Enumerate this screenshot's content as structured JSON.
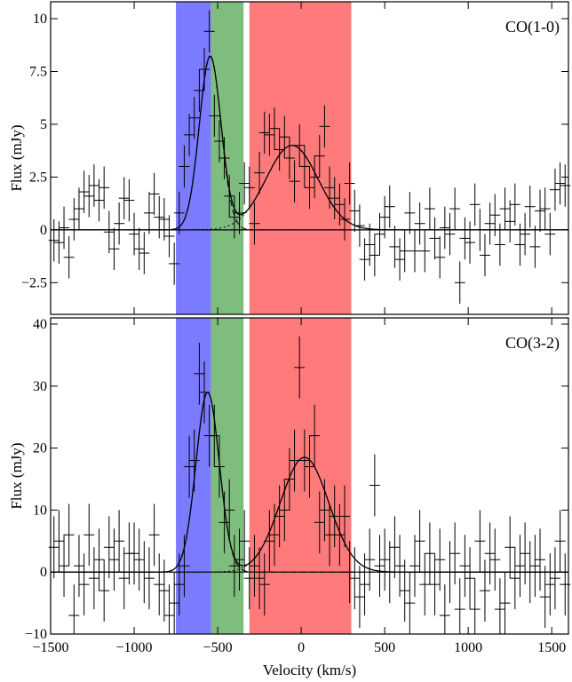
{
  "colors": {
    "blue_band": "#7b7bff",
    "green_band": "#7fbd7f",
    "red_band": "#ff7b7b",
    "ink": "#000000"
  },
  "chart_data": [
    {
      "type": "line",
      "panel_label": "CO(1-0)",
      "ylabel": "Flux (mJy)",
      "xlabel": "",
      "xlim": [
        -1500,
        1600
      ],
      "ylim": [
        -4,
        10.8
      ],
      "xticks": [
        -1500,
        -1000,
        -500,
        0,
        500,
        1000,
        1500
      ],
      "yticks": [
        -2.5,
        0,
        2.5,
        5,
        7.5,
        10
      ],
      "ytick_labels": [
        "−2.5",
        "0",
        "2.5",
        "5",
        "7.5",
        "10"
      ],
      "bands": [
        {
          "color": "blue",
          "x0": -750,
          "x1": -540
        },
        {
          "color": "green",
          "x0": -540,
          "x1": -345
        },
        {
          "color": "red",
          "x0": -310,
          "x1": 300
        }
      ],
      "components": [
        {
          "center": -545,
          "amplitude": 8.2,
          "sigma": 65
        },
        {
          "center": -55,
          "amplitude": 4.0,
          "sigma": 155
        }
      ],
      "points": {
        "x": [
          -1480,
          -1450,
          -1420,
          -1390,
          -1360,
          -1330,
          -1300,
          -1270,
          -1240,
          -1210,
          -1180,
          -1150,
          -1120,
          -1090,
          -1060,
          -1030,
          -1000,
          -970,
          -940,
          -910,
          -880,
          -850,
          -820,
          -790,
          -760,
          -730,
          -700,
          -670,
          -640,
          -610,
          -580,
          -550,
          -520,
          -490,
          -460,
          -430,
          -400,
          -370,
          -340,
          -310,
          -280,
          -250,
          -220,
          -190,
          -160,
          -130,
          -100,
          -70,
          -40,
          -10,
          20,
          50,
          80,
          110,
          140,
          170,
          200,
          230,
          260,
          290,
          320,
          350,
          380,
          410,
          440,
          470,
          500,
          530,
          560,
          590,
          620,
          650,
          680,
          710,
          740,
          770,
          800,
          830,
          860,
          890,
          920,
          950,
          980,
          1010,
          1040,
          1070,
          1100,
          1130,
          1160,
          1190,
          1220,
          1250,
          1280,
          1310,
          1340,
          1370,
          1400,
          1430,
          1460,
          1490,
          1520,
          1550,
          1580
        ],
        "y": [
          -0.5,
          -0.6,
          0.1,
          -1.3,
          0.5,
          1.0,
          1.8,
          1.6,
          2.1,
          1.4,
          2.0,
          -0.1,
          -0.9,
          0.3,
          1.5,
          1.4,
          -0.2,
          -0.9,
          -1.1,
          0.8,
          1.7,
          0.6,
          0.5,
          -0.3,
          -1.6,
          0.8,
          3.0,
          4.5,
          5.3,
          6.6,
          7.6,
          9.4,
          5.4,
          4.2,
          3.4,
          1.6,
          0.6,
          0.8,
          2.2,
          2.0,
          0.3,
          2.7,
          4.6,
          4.5,
          4.8,
          3.8,
          4.4,
          3.4,
          2.3,
          4.0,
          3.0,
          2.0,
          2.5,
          3.5,
          4.9,
          2.0,
          1.5,
          1.2,
          0.5,
          2.2,
          0.9,
          0.2,
          -1.4,
          -0.7,
          -1.2,
          -0.2,
          0.6,
          1.1,
          -0.8,
          -1.4,
          -1.0,
          0.8,
          -1.0,
          0.3,
          -1.0,
          1.0,
          -0.4,
          -1.3,
          0.1,
          -0.2,
          1.0,
          -2.5,
          -0.4,
          -0.6,
          1.2,
          0.0,
          -1.2,
          0.3,
          0.7,
          -0.7,
          1.0,
          0.4,
          1.2,
          -0.7,
          -0.2,
          1.1,
          -0.8,
          0.9,
          1.0,
          -0.2,
          1.9,
          2.2,
          2.1
        ],
        "yerr": [
          1.0,
          1.0,
          1.0,
          1.0,
          1.0,
          1.0,
          1.0,
          1.0,
          1.0,
          1.0,
          1.0,
          1.0,
          1.0,
          1.0,
          1.0,
          1.0,
          1.0,
          1.0,
          1.0,
          1.0,
          1.0,
          1.0,
          1.0,
          1.0,
          1.0,
          1.0,
          1.0,
          1.0,
          1.0,
          1.0,
          1.0,
          1.0,
          1.0,
          1.0,
          1.0,
          1.0,
          1.0,
          1.0,
          1.0,
          1.0,
          1.0,
          1.0,
          1.0,
          1.0,
          1.0,
          1.0,
          1.0,
          1.0,
          1.0,
          1.0,
          1.0,
          1.0,
          1.0,
          1.0,
          1.0,
          1.0,
          1.0,
          1.0,
          1.0,
          1.0,
          1.0,
          1.0,
          1.0,
          1.0,
          1.0,
          1.0,
          1.0,
          1.0,
          1.0,
          1.0,
          1.0,
          1.0,
          1.0,
          1.0,
          1.0,
          1.0,
          1.0,
          1.0,
          1.0,
          1.0,
          1.0,
          1.0,
          1.0,
          1.0,
          1.0,
          1.0,
          1.0,
          1.0,
          1.0,
          1.0,
          1.0,
          1.0,
          1.0,
          1.0,
          1.0,
          1.0,
          1.0,
          1.0,
          1.0,
          1.0,
          1.0,
          1.0,
          1.0
        ]
      }
    },
    {
      "type": "line",
      "panel_label": "CO(3-2)",
      "ylabel": "Flux (mJy)",
      "xlabel": "Velocity (km/s)",
      "xlim": [
        -1500,
        1600
      ],
      "ylim": [
        -10,
        41
      ],
      "xticks": [
        -1500,
        -1000,
        -500,
        0,
        500,
        1000,
        1500
      ],
      "xtick_labels": [
        "−1500",
        "−1000",
        "−500",
        "0",
        "500",
        "1000",
        "1500"
      ],
      "yticks": [
        -10,
        0,
        10,
        20,
        30,
        40
      ],
      "ytick_labels": [
        "−10",
        "0",
        "10",
        "20",
        "30",
        "40"
      ],
      "bands": [
        {
          "color": "blue",
          "x0": -750,
          "x1": -540
        },
        {
          "color": "green",
          "x0": -540,
          "x1": -345
        },
        {
          "color": "red",
          "x0": -310,
          "x1": 300
        }
      ],
      "components": [
        {
          "center": -560,
          "amplitude": 29.0,
          "sigma": 70
        },
        {
          "center": 20,
          "amplitude": 18.5,
          "sigma": 145
        }
      ],
      "points": {
        "x": [
          -1480,
          -1450,
          -1420,
          -1390,
          -1360,
          -1330,
          -1300,
          -1270,
          -1240,
          -1210,
          -1180,
          -1150,
          -1120,
          -1090,
          -1060,
          -1030,
          -1000,
          -970,
          -940,
          -910,
          -880,
          -850,
          -820,
          -790,
          -760,
          -730,
          -700,
          -670,
          -640,
          -610,
          -580,
          -550,
          -520,
          -490,
          -460,
          -430,
          -400,
          -370,
          -340,
          -310,
          -280,
          -250,
          -220,
          -190,
          -160,
          -130,
          -100,
          -70,
          -40,
          -10,
          20,
          50,
          80,
          110,
          140,
          170,
          200,
          230,
          260,
          290,
          320,
          350,
          380,
          410,
          440,
          470,
          500,
          530,
          560,
          590,
          620,
          650,
          680,
          710,
          740,
          770,
          800,
          830,
          860,
          890,
          920,
          950,
          980,
          1010,
          1040,
          1070,
          1100,
          1130,
          1160,
          1190,
          1220,
          1250,
          1280,
          1310,
          1340,
          1370,
          1400,
          1430,
          1460,
          1490,
          1520,
          1550,
          1580
        ],
        "y": [
          4,
          5,
          1,
          6,
          -7,
          1,
          -2,
          6,
          -1,
          2,
          -3,
          4,
          2,
          5,
          -1,
          3,
          3,
          2,
          0,
          -1,
          6,
          -2,
          -3,
          -7,
          -5,
          -2,
          1,
          17,
          18,
          32,
          29,
          22,
          22,
          17,
          8,
          10,
          1,
          2,
          5,
          -1,
          1,
          -1,
          -2,
          5,
          6,
          9,
          10,
          15,
          18,
          33,
          18,
          17,
          22,
          8,
          10,
          6,
          9,
          6,
          9,
          0,
          -1,
          -4,
          -2,
          2,
          14,
          1,
          2,
          0,
          4,
          1,
          -3,
          -5,
          1,
          5,
          -2,
          3,
          -2,
          2,
          -7,
          0,
          3,
          -6,
          1,
          -1,
          -6,
          5,
          -3,
          3,
          2,
          -6,
          -5,
          4,
          -1,
          1,
          3,
          0,
          1,
          2,
          -4,
          -2,
          -1,
          5,
          -2
        ],
        "yerr": [
          5,
          5,
          5,
          5,
          5,
          5,
          5,
          5,
          5,
          5,
          5,
          5,
          5,
          5,
          5,
          5,
          5,
          5,
          5,
          5,
          5,
          5,
          5,
          5,
          5,
          5,
          5,
          5,
          5,
          5,
          5,
          5,
          5,
          5,
          5,
          5,
          5,
          5,
          5,
          5,
          5,
          5,
          5,
          5,
          5,
          5,
          5,
          5,
          5,
          5,
          5,
          5,
          5,
          5,
          5,
          5,
          5,
          5,
          5,
          5,
          5,
          5,
          5,
          5,
          5,
          5,
          5,
          5,
          5,
          5,
          5,
          5,
          5,
          5,
          5,
          5,
          5,
          5,
          5,
          5,
          5,
          5,
          5,
          5,
          5,
          5,
          5,
          5,
          5,
          5,
          5,
          5,
          5,
          5,
          5,
          5,
          5,
          5,
          5,
          5,
          5,
          5,
          5
        ]
      }
    }
  ]
}
